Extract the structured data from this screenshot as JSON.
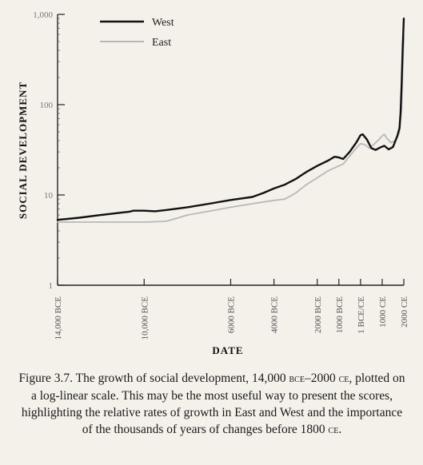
{
  "chart_data": {
    "type": "line",
    "xlabel": "DATE",
    "ylabel": "SOCIAL DEVELOPMENT",
    "yscale": "log",
    "ylim": [
      1,
      1000
    ],
    "xlim": [
      -14000,
      2000
    ],
    "legend_position": "top-left",
    "x_ticks": [
      {
        "value": -14000,
        "label": "14,000 BCE"
      },
      {
        "value": -10000,
        "label": "10,000 BCE"
      },
      {
        "value": -6000,
        "label": "6000 BCE"
      },
      {
        "value": -4000,
        "label": "4000 BCE"
      },
      {
        "value": -2000,
        "label": "2000 BCE"
      },
      {
        "value": -1000,
        "label": "1000 BCE"
      },
      {
        "value": 0,
        "label": "1 BCE/CE"
      },
      {
        "value": 1000,
        "label": "1000 CE"
      },
      {
        "value": 2000,
        "label": "2000 CE"
      }
    ],
    "y_ticks": [
      {
        "value": 1,
        "label": "1"
      },
      {
        "value": 10,
        "label": "10"
      },
      {
        "value": 100,
        "label": "100"
      },
      {
        "value": 1000,
        "label": "1,000"
      }
    ],
    "series": [
      {
        "name": "West",
        "color": "#111111",
        "points": [
          [
            -14000,
            5.3
          ],
          [
            -13000,
            5.6
          ],
          [
            -12000,
            6.0
          ],
          [
            -11000,
            6.4
          ],
          [
            -10700,
            6.5
          ],
          [
            -10500,
            6.7
          ],
          [
            -10000,
            6.7
          ],
          [
            -9500,
            6.6
          ],
          [
            -9000,
            6.8
          ],
          [
            -8000,
            7.3
          ],
          [
            -7000,
            8.0
          ],
          [
            -6000,
            8.8
          ],
          [
            -5000,
            9.5
          ],
          [
            -4500,
            10.5
          ],
          [
            -4000,
            11.8
          ],
          [
            -3500,
            13.0
          ],
          [
            -3000,
            15.0
          ],
          [
            -2500,
            18.0
          ],
          [
            -2000,
            21.0
          ],
          [
            -1500,
            24.0
          ],
          [
            -1200,
            26.5
          ],
          [
            -1000,
            26.0
          ],
          [
            -800,
            25.0
          ],
          [
            -500,
            30.0
          ],
          [
            -200,
            38.0
          ],
          [
            0,
            46.0
          ],
          [
            100,
            47.0
          ],
          [
            300,
            41.0
          ],
          [
            500,
            33.0
          ],
          [
            700,
            31.5
          ],
          [
            900,
            33.5
          ],
          [
            1100,
            35.0
          ],
          [
            1300,
            32.0
          ],
          [
            1500,
            34.0
          ],
          [
            1700,
            45.0
          ],
          [
            1800,
            55.0
          ],
          [
            1850,
            80.0
          ],
          [
            1900,
            170.0
          ],
          [
            1950,
            420.0
          ],
          [
            2000,
            900.0
          ]
        ]
      },
      {
        "name": "East",
        "color": "#b8b8b8",
        "points": [
          [
            -14000,
            5.0
          ],
          [
            -13000,
            5.0
          ],
          [
            -12000,
            5.0
          ],
          [
            -11000,
            5.0
          ],
          [
            -10000,
            5.0
          ],
          [
            -9000,
            5.1
          ],
          [
            -8500,
            5.5
          ],
          [
            -8000,
            6.0
          ],
          [
            -7000,
            6.6
          ],
          [
            -6000,
            7.3
          ],
          [
            -5000,
            8.0
          ],
          [
            -4000,
            8.7
          ],
          [
            -3500,
            9.0
          ],
          [
            -3000,
            10.5
          ],
          [
            -2500,
            13.0
          ],
          [
            -2000,
            15.5
          ],
          [
            -1500,
            18.5
          ],
          [
            -1000,
            21.0
          ],
          [
            -800,
            22.0
          ],
          [
            -500,
            27.0
          ],
          [
            -200,
            33.0
          ],
          [
            0,
            37.0
          ],
          [
            200,
            36.0
          ],
          [
            400,
            33.0
          ],
          [
            600,
            36.0
          ],
          [
            800,
            40.0
          ],
          [
            1000,
            45.0
          ],
          [
            1100,
            47.0
          ],
          [
            1200,
            43.0
          ],
          [
            1400,
            38.0
          ],
          [
            1600,
            40.0
          ],
          [
            1700,
            44.0
          ],
          [
            1800,
            50.0
          ],
          [
            1900,
            90.0
          ],
          [
            1950,
            250.0
          ],
          [
            2000,
            560.0
          ]
        ]
      }
    ]
  },
  "caption": {
    "lead": "Figure 3.7. The growth of social development, 14,000 ",
    "bce": "bce",
    "dash": "–2000 ",
    "ce1": "ce",
    "body": ", plotted on a log-linear scale. This may be the most useful way to present the scores, highlighting the relative rates of growth in East and West and the importance of the thousands of years of changes before 1800 ",
    "ce2": "ce",
    "end": "."
  }
}
